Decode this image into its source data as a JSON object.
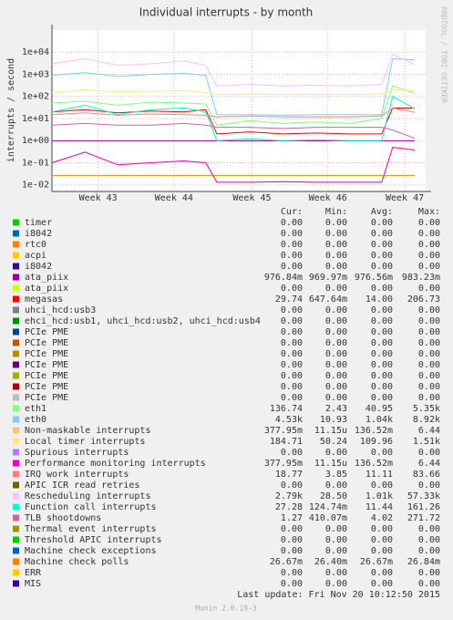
{
  "chart_data": {
    "type": "line",
    "title": "Individual interrupts - by month",
    "y_label": "interrupts / second",
    "side_label": "RRDTOOL / TOBI OETIKER",
    "log_scale": true,
    "grid": true,
    "x": [
      0,
      3,
      6,
      9,
      12,
      14,
      15,
      18,
      21,
      24,
      27,
      30,
      31,
      33
    ],
    "xlim": [
      0,
      34
    ],
    "xticks": [
      {
        "value": 4.2,
        "label": "Week 43"
      },
      {
        "value": 11.1,
        "label": "Week 44"
      },
      {
        "value": 18.2,
        "label": "Week 45"
      },
      {
        "value": 25.1,
        "label": "Week 46"
      },
      {
        "value": 32.1,
        "label": "Week 47"
      }
    ],
    "ylim": [
      0.005,
      100000
    ],
    "yticks": [
      {
        "value": 0.01,
        "label": "1e-02"
      },
      {
        "value": 0.1,
        "label": "1e-01"
      },
      {
        "value": 1,
        "label": "1e+00"
      },
      {
        "value": 10,
        "label": "1e+01"
      },
      {
        "value": 100,
        "label": "1e+02"
      },
      {
        "value": 1000,
        "label": "1e+03"
      },
      {
        "value": 10000,
        "label": "1e+04"
      }
    ],
    "stat_columns": [
      "Cur:",
      "Min:",
      "Avg:",
      "Max:"
    ],
    "series": [
      {
        "name": "timer",
        "color": "#00CC00",
        "values": [
          null,
          null,
          null,
          null,
          null,
          null,
          null,
          null,
          null,
          null,
          null,
          null,
          null,
          null
        ],
        "stats": [
          "0.00",
          "0.00",
          "0.00",
          "0.00"
        ]
      },
      {
        "name": "i8042",
        "color": "#0066B3",
        "values": [
          null,
          null,
          null,
          null,
          null,
          null,
          null,
          null,
          null,
          null,
          null,
          null,
          null,
          null
        ],
        "stats": [
          "0.00",
          "0.00",
          "0.00",
          "0.00"
        ]
      },
      {
        "name": "rtc0",
        "color": "#FF8000",
        "values": [
          null,
          null,
          null,
          null,
          null,
          null,
          null,
          null,
          null,
          null,
          null,
          null,
          null,
          null
        ],
        "stats": [
          "0.00",
          "0.00",
          "0.00",
          "0.00"
        ]
      },
      {
        "name": "acpi",
        "color": "#FFCC00",
        "values": [
          null,
          null,
          null,
          null,
          null,
          null,
          null,
          null,
          null,
          null,
          null,
          null,
          null,
          null
        ],
        "stats": [
          "0.00",
          "0.00",
          "0.00",
          "0.00"
        ]
      },
      {
        "name": "i8042",
        "color": "#330099",
        "values": [
          null,
          null,
          null,
          null,
          null,
          null,
          null,
          null,
          null,
          null,
          null,
          null,
          null,
          null
        ],
        "stats": [
          "0.00",
          "0.00",
          "0.00",
          "0.00"
        ]
      },
      {
        "name": "ata_piix",
        "color": "#990099",
        "values": [
          0.98,
          0.98,
          0.98,
          0.98,
          0.98,
          0.98,
          0.98,
          0.98,
          0.98,
          0.98,
          0.98,
          0.98,
          0.98,
          0.98
        ],
        "stats": [
          "976.84m",
          "969.97m",
          "976.56m",
          "983.23m"
        ]
      },
      {
        "name": "ata_piix",
        "color": "#CCFF00",
        "values": [
          null,
          null,
          null,
          null,
          null,
          null,
          null,
          null,
          null,
          null,
          null,
          null,
          null,
          null
        ],
        "stats": [
          "0.00",
          "0.00",
          "0.00",
          "0.00"
        ]
      },
      {
        "name": "megasas",
        "color": "#FF0000",
        "values": [
          20,
          25,
          18,
          22,
          20,
          25,
          2,
          2.5,
          2,
          2.2,
          2,
          2,
          30,
          29.74
        ],
        "stats": [
          "29.74",
          "647.64m",
          "14.00",
          "206.73"
        ]
      },
      {
        "name": "uhci_hcd:usb3",
        "color": "#808080",
        "values": [
          null,
          null,
          null,
          null,
          null,
          null,
          null,
          null,
          null,
          null,
          null,
          null,
          null,
          null
        ],
        "stats": [
          "0.00",
          "0.00",
          "0.00",
          "0.00"
        ]
      },
      {
        "name": "ehci_hcd:usb1, uhci_hcd:usb2, uhci_hcd:usb4",
        "color": "#008F00",
        "values": [
          null,
          null,
          null,
          null,
          null,
          null,
          null,
          null,
          null,
          null,
          null,
          null,
          null,
          null
        ],
        "stats": [
          "0.00",
          "0.00",
          "0.00",
          "0.00"
        ]
      },
      {
        "name": "PCIe PME",
        "color": "#00487D",
        "values": [
          null,
          null,
          null,
          null,
          null,
          null,
          null,
          null,
          null,
          null,
          null,
          null,
          null,
          null
        ],
        "stats": [
          "0.00",
          "0.00",
          "0.00",
          "0.00"
        ]
      },
      {
        "name": "PCIe PME",
        "color": "#B35A00",
        "values": [
          null,
          null,
          null,
          null,
          null,
          null,
          null,
          null,
          null,
          null,
          null,
          null,
          null,
          null
        ],
        "stats": [
          "0.00",
          "0.00",
          "0.00",
          "0.00"
        ]
      },
      {
        "name": "PCIe PME",
        "color": "#B38F00",
        "values": [
          null,
          null,
          null,
          null,
          null,
          null,
          null,
          null,
          null,
          null,
          null,
          null,
          null,
          null
        ],
        "stats": [
          "0.00",
          "0.00",
          "0.00",
          "0.00"
        ]
      },
      {
        "name": "PCIe PME",
        "color": "#6B006B",
        "values": [
          null,
          null,
          null,
          null,
          null,
          null,
          null,
          null,
          null,
          null,
          null,
          null,
          null,
          null
        ],
        "stats": [
          "0.00",
          "0.00",
          "0.00",
          "0.00"
        ]
      },
      {
        "name": "PCIe PME",
        "color": "#8FB300",
        "values": [
          null,
          null,
          null,
          null,
          null,
          null,
          null,
          null,
          null,
          null,
          null,
          null,
          null,
          null
        ],
        "stats": [
          "0.00",
          "0.00",
          "0.00",
          "0.00"
        ]
      },
      {
        "name": "PCIe PME",
        "color": "#B30000",
        "values": [
          null,
          null,
          null,
          null,
          null,
          null,
          null,
          null,
          null,
          null,
          null,
          null,
          null,
          null
        ],
        "stats": [
          "0.00",
          "0.00",
          "0.00",
          "0.00"
        ]
      },
      {
        "name": "PCIe PME",
        "color": "#BEBEBE",
        "values": [
          null,
          null,
          null,
          null,
          null,
          null,
          null,
          null,
          null,
          null,
          null,
          null,
          null,
          null
        ],
        "stats": [
          "0.00",
          "0.00",
          "0.00",
          "0.00"
        ]
      },
      {
        "name": "eth1",
        "color": "#80FF80",
        "values": [
          50,
          60,
          40,
          55,
          50,
          45,
          5,
          8,
          6,
          7,
          6,
          10,
          300,
          136.74
        ],
        "stats": [
          "136.74",
          "2.43",
          "40.95",
          "5.35k"
        ]
      },
      {
        "name": "eth0",
        "color": "#80C9FF",
        "values": [
          900,
          1200,
          800,
          1000,
          1100,
          900,
          15,
          15,
          14,
          15,
          15,
          15,
          5000,
          4530
        ],
        "stats": [
          "4.53k",
          "10.93",
          "1.04k",
          "8.92k"
        ]
      },
      {
        "name": "Non-maskable interrupts",
        "color": "#FFC080",
        "values": [
          0.1,
          0.3,
          0.08,
          0.1,
          0.12,
          0.1,
          0.013,
          0.013,
          0.014,
          0.013,
          0.013,
          0.013,
          0.5,
          0.378
        ],
        "stats": [
          "377.95m",
          "11.15u",
          "136.52m",
          "6.44"
        ]
      },
      {
        "name": "Local timer interrupts",
        "color": "#FFE680",
        "values": [
          150,
          200,
          160,
          170,
          180,
          150,
          120,
          130,
          120,
          125,
          120,
          130,
          200,
          184.71
        ],
        "stats": [
          "184.71",
          "50.24",
          "109.96",
          "1.51k"
        ]
      },
      {
        "name": "Spurious interrupts",
        "color": "#AA80FF",
        "values": [
          null,
          null,
          null,
          null,
          null,
          null,
          null,
          null,
          null,
          null,
          null,
          null,
          null,
          null
        ],
        "stats": [
          "0.00",
          "0.00",
          "0.00",
          "0.00"
        ]
      },
      {
        "name": "Performance monitoring interrupts",
        "color": "#EE00CC",
        "values": [
          0.1,
          0.3,
          0.08,
          0.1,
          0.12,
          0.1,
          0.013,
          0.013,
          0.014,
          0.013,
          0.013,
          0.013,
          0.5,
          0.378
        ],
        "stats": [
          "377.95m",
          "11.15u",
          "136.52m",
          "6.44"
        ]
      },
      {
        "name": "IRQ work interrupts",
        "color": "#FF8080",
        "values": [
          15,
          18,
          14,
          16,
          15,
          14,
          12,
          13,
          12,
          12,
          12,
          13,
          30,
          18.77
        ],
        "stats": [
          "18.77",
          "3.85",
          "11.11",
          "83.66"
        ]
      },
      {
        "name": "APIC ICR read retries",
        "color": "#666600",
        "values": [
          null,
          null,
          null,
          null,
          null,
          null,
          null,
          null,
          null,
          null,
          null,
          null,
          null,
          null
        ],
        "stats": [
          "0.00",
          "0.00",
          "0.00",
          "0.00"
        ]
      },
      {
        "name": "Rescheduling interrupts",
        "color": "#FFBFFF",
        "values": [
          3000,
          5000,
          2500,
          3000,
          4000,
          2500,
          300,
          350,
          300,
          320,
          300,
          350,
          8000,
          2790
        ],
        "stats": [
          "2.79k",
          "28.50",
          "1.01k",
          "57.33k"
        ]
      },
      {
        "name": "Function call interrupts",
        "color": "#00FFCC",
        "values": [
          20,
          40,
          15,
          25,
          30,
          20,
          1,
          1.2,
          1,
          1.1,
          1,
          1,
          100,
          27.28
        ],
        "stats": [
          "27.28",
          "124.74m",
          "11.44",
          "161.26"
        ]
      },
      {
        "name": "TLB shootdowns",
        "color": "#CC6699",
        "values": [
          5,
          6,
          5,
          5,
          6,
          5,
          4,
          4,
          3.5,
          4,
          4,
          4,
          3,
          1.27
        ],
        "stats": [
          "1.27",
          "410.07m",
          "4.02",
          "271.72"
        ]
      },
      {
        "name": "Thermal event interrupts",
        "color": "#999900",
        "values": [
          null,
          null,
          null,
          null,
          null,
          null,
          null,
          null,
          null,
          null,
          null,
          null,
          null,
          null
        ],
        "stats": [
          "0.00",
          "0.00",
          "0.00",
          "0.00"
        ]
      },
      {
        "name": "Threshold APIC interrupts",
        "color": "#00CC00",
        "values": [
          null,
          null,
          null,
          null,
          null,
          null,
          null,
          null,
          null,
          null,
          null,
          null,
          null,
          null
        ],
        "stats": [
          "0.00",
          "0.00",
          "0.00",
          "0.00"
        ]
      },
      {
        "name": "Machine check exceptions",
        "color": "#0066B3",
        "values": [
          null,
          null,
          null,
          null,
          null,
          null,
          null,
          null,
          null,
          null,
          null,
          null,
          null,
          null
        ],
        "stats": [
          "0.00",
          "0.00",
          "0.00",
          "0.00"
        ]
      },
      {
        "name": "Machine check polls",
        "color": "#FF8000",
        "values": [
          0.0267,
          0.0267,
          0.0267,
          0.0267,
          0.0267,
          0.0267,
          0.0267,
          0.0267,
          0.0267,
          0.0267,
          0.0267,
          0.0267,
          0.0267,
          0.0267
        ],
        "stats": [
          "26.67m",
          "26.40m",
          "26.67m",
          "26.84m"
        ]
      },
      {
        "name": "ERR",
        "color": "#FFCC00",
        "values": [
          null,
          null,
          null,
          null,
          null,
          null,
          null,
          null,
          null,
          null,
          null,
          null,
          null,
          null
        ],
        "stats": [
          "0.00",
          "0.00",
          "0.00",
          "0.00"
        ]
      },
      {
        "name": "MIS",
        "color": "#330099",
        "values": [
          null,
          null,
          null,
          null,
          null,
          null,
          null,
          null,
          null,
          null,
          null,
          null,
          null,
          null
        ],
        "stats": [
          "0.00",
          "0.00",
          "0.00",
          "0.00"
        ]
      }
    ],
    "last_update": "Last update:  Fri Nov 20 10:12:50 2015",
    "footer": "Munin 2.0.19-3"
  }
}
